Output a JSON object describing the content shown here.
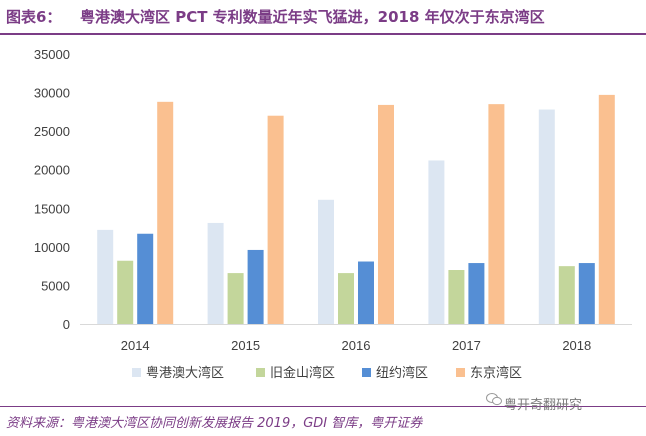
{
  "figure": {
    "label": "图表6：",
    "title": "粤港澳大湾区 PCT 专利数量近年实飞猛进，2018 年仅次于东京湾区",
    "source": "资料来源：粤港澳大湾区协同创新发展报告 2019，GDI 智库，粤开证券",
    "watermark": "粤开奇翻研究"
  },
  "chart_data": {
    "type": "bar",
    "categories": [
      "2014",
      "2015",
      "2016",
      "2017",
      "2018"
    ],
    "series": [
      {
        "name": "粤港澳大湾区",
        "color": "#dce6f2",
        "values": [
          12200,
          13100,
          16100,
          21200,
          27800
        ]
      },
      {
        "name": "旧金山湾区",
        "color": "#c3d69b",
        "values": [
          8200,
          6600,
          6600,
          7000,
          7500
        ]
      },
      {
        "name": "纽约湾区",
        "color": "#558ed5",
        "values": [
          11700,
          9600,
          8100,
          7900,
          7900
        ]
      },
      {
        "name": "东京湾区",
        "color": "#fac090",
        "values": [
          28800,
          27000,
          28400,
          28500,
          29700
        ]
      }
    ],
    "ylim": [
      0,
      35000
    ],
    "yticks": [
      "0",
      "5000",
      "10000",
      "15000",
      "20000",
      "25000",
      "30000",
      "35000"
    ],
    "grid": false,
    "legend": "bottom"
  }
}
